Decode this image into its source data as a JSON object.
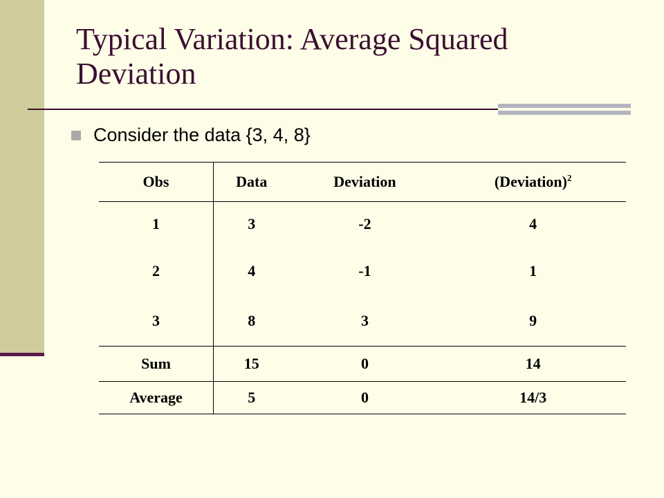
{
  "slide": {
    "title": "Typical Variation: Average Squared Deviation",
    "bullet": "Consider the data {3, 4, 8}"
  },
  "table": {
    "headers": {
      "obs": "Obs",
      "data": "Data",
      "deviation": "Deviation",
      "sq_deviation": "(Deviation)",
      "sq_exponent": "2"
    },
    "rows": [
      {
        "obs": "1",
        "data": "3",
        "deviation": "-2",
        "sq_deviation": "4"
      },
      {
        "obs": "2",
        "data": "4",
        "deviation": "-1",
        "sq_deviation": "1"
      },
      {
        "obs": "3",
        "data": "8",
        "deviation": "3",
        "sq_deviation": "9"
      }
    ],
    "sum": {
      "label": "Sum",
      "data": "15",
      "deviation": "0",
      "sq_deviation": "14"
    },
    "average": {
      "label": "Average",
      "data": "5",
      "deviation": "0",
      "sq_deviation": "14/3"
    }
  }
}
